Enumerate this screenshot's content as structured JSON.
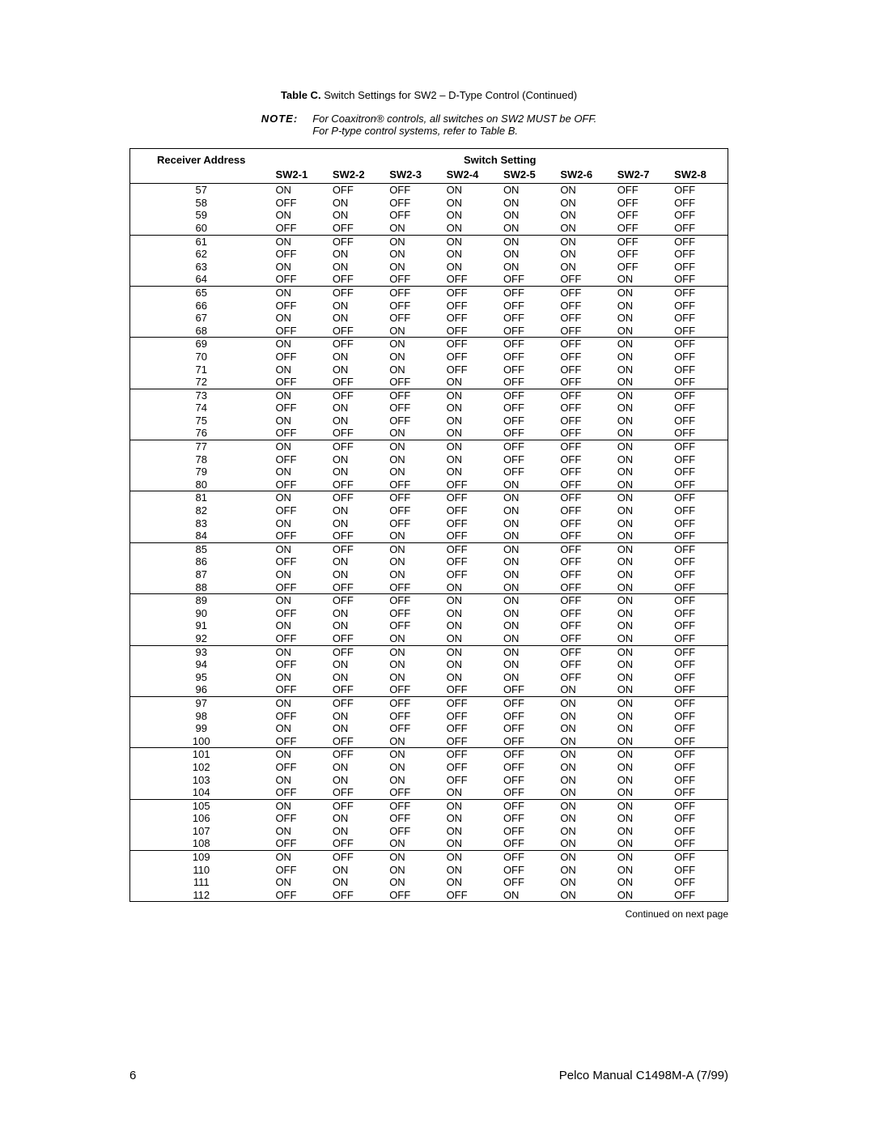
{
  "caption_label": "Table C.",
  "caption_text": "Switch Settings for SW2 – D-Type Control (Continued)",
  "note_label": "NOTE:",
  "note_text": "For Coaxitron® controls, all switches on SW2 MUST be OFF.\nFor P-type control systems, refer to Table B.",
  "header_addr": "Receiver Address",
  "header_switch": "Switch Setting",
  "cols": [
    "SW2-1",
    "SW2-2",
    "SW2-3",
    "SW2-4",
    "SW2-5",
    "SW2-6",
    "SW2-7",
    "SW2-8"
  ],
  "continued": "Continued on next page",
  "page_num": "6",
  "manual_ref": "Pelco Manual C1498M-A (7/99)",
  "groups": [
    [
      {
        "addr": "57",
        "v": [
          "ON",
          "OFF",
          "OFF",
          "ON",
          "ON",
          "ON",
          "OFF",
          "OFF"
        ]
      },
      {
        "addr": "58",
        "v": [
          "OFF",
          "ON",
          "OFF",
          "ON",
          "ON",
          "ON",
          "OFF",
          "OFF"
        ]
      },
      {
        "addr": "59",
        "v": [
          "ON",
          "ON",
          "OFF",
          "ON",
          "ON",
          "ON",
          "OFF",
          "OFF"
        ]
      },
      {
        "addr": "60",
        "v": [
          "OFF",
          "OFF",
          "ON",
          "ON",
          "ON",
          "ON",
          "OFF",
          "OFF"
        ]
      }
    ],
    [
      {
        "addr": "61",
        "v": [
          "ON",
          "OFF",
          "ON",
          "ON",
          "ON",
          "ON",
          "OFF",
          "OFF"
        ]
      },
      {
        "addr": "62",
        "v": [
          "OFF",
          "ON",
          "ON",
          "ON",
          "ON",
          "ON",
          "OFF",
          "OFF"
        ]
      },
      {
        "addr": "63",
        "v": [
          "ON",
          "ON",
          "ON",
          "ON",
          "ON",
          "ON",
          "OFF",
          "OFF"
        ]
      },
      {
        "addr": "64",
        "v": [
          "OFF",
          "OFF",
          "OFF",
          "OFF",
          "OFF",
          "OFF",
          "ON",
          "OFF"
        ]
      }
    ],
    [
      {
        "addr": "65",
        "v": [
          "ON",
          "OFF",
          "OFF",
          "OFF",
          "OFF",
          "OFF",
          "ON",
          "OFF"
        ]
      },
      {
        "addr": "66",
        "v": [
          "OFF",
          "ON",
          "OFF",
          "OFF",
          "OFF",
          "OFF",
          "ON",
          "OFF"
        ]
      },
      {
        "addr": "67",
        "v": [
          "ON",
          "ON",
          "OFF",
          "OFF",
          "OFF",
          "OFF",
          "ON",
          "OFF"
        ]
      },
      {
        "addr": "68",
        "v": [
          "OFF",
          "OFF",
          "ON",
          "OFF",
          "OFF",
          "OFF",
          "ON",
          "OFF"
        ]
      }
    ],
    [
      {
        "addr": "69",
        "v": [
          "ON",
          "OFF",
          "ON",
          "OFF",
          "OFF",
          "OFF",
          "ON",
          "OFF"
        ]
      },
      {
        "addr": "70",
        "v": [
          "OFF",
          "ON",
          "ON",
          "OFF",
          "OFF",
          "OFF",
          "ON",
          "OFF"
        ]
      },
      {
        "addr": "71",
        "v": [
          "ON",
          "ON",
          "ON",
          "OFF",
          "OFF",
          "OFF",
          "ON",
          "OFF"
        ]
      },
      {
        "addr": "72",
        "v": [
          "OFF",
          "OFF",
          "OFF",
          "ON",
          "OFF",
          "OFF",
          "ON",
          "OFF"
        ]
      }
    ],
    [
      {
        "addr": "73",
        "v": [
          "ON",
          "OFF",
          "OFF",
          "ON",
          "OFF",
          "OFF",
          "ON",
          "OFF"
        ]
      },
      {
        "addr": "74",
        "v": [
          "OFF",
          "ON",
          "OFF",
          "ON",
          "OFF",
          "OFF",
          "ON",
          "OFF"
        ]
      },
      {
        "addr": "75",
        "v": [
          "ON",
          "ON",
          "OFF",
          "ON",
          "OFF",
          "OFF",
          "ON",
          "OFF"
        ]
      },
      {
        "addr": "76",
        "v": [
          "OFF",
          "OFF",
          "ON",
          "ON",
          "OFF",
          "OFF",
          "ON",
          "OFF"
        ]
      }
    ],
    [
      {
        "addr": "77",
        "v": [
          "ON",
          "OFF",
          "ON",
          "ON",
          "OFF",
          "OFF",
          "ON",
          "OFF"
        ]
      },
      {
        "addr": "78",
        "v": [
          "OFF",
          "ON",
          "ON",
          "ON",
          "OFF",
          "OFF",
          "ON",
          "OFF"
        ]
      },
      {
        "addr": "79",
        "v": [
          "ON",
          "ON",
          "ON",
          "ON",
          "OFF",
          "OFF",
          "ON",
          "OFF"
        ]
      },
      {
        "addr": "80",
        "v": [
          "OFF",
          "OFF",
          "OFF",
          "OFF",
          "ON",
          "OFF",
          "ON",
          "OFF"
        ]
      }
    ],
    [
      {
        "addr": "81",
        "v": [
          "ON",
          "OFF",
          "OFF",
          "OFF",
          "ON",
          "OFF",
          "ON",
          "OFF"
        ]
      },
      {
        "addr": "82",
        "v": [
          "OFF",
          "ON",
          "OFF",
          "OFF",
          "ON",
          "OFF",
          "ON",
          "OFF"
        ]
      },
      {
        "addr": "83",
        "v": [
          "ON",
          "ON",
          "OFF",
          "OFF",
          "ON",
          "OFF",
          "ON",
          "OFF"
        ]
      },
      {
        "addr": "84",
        "v": [
          "OFF",
          "OFF",
          "ON",
          "OFF",
          "ON",
          "OFF",
          "ON",
          "OFF"
        ]
      }
    ],
    [
      {
        "addr": "85",
        "v": [
          "ON",
          "OFF",
          "ON",
          "OFF",
          "ON",
          "OFF",
          "ON",
          "OFF"
        ]
      },
      {
        "addr": "86",
        "v": [
          "OFF",
          "ON",
          "ON",
          "OFF",
          "ON",
          "OFF",
          "ON",
          "OFF"
        ]
      },
      {
        "addr": "87",
        "v": [
          "ON",
          "ON",
          "ON",
          "OFF",
          "ON",
          "OFF",
          "ON",
          "OFF"
        ]
      },
      {
        "addr": "88",
        "v": [
          "OFF",
          "OFF",
          "OFF",
          "ON",
          "ON",
          "OFF",
          "ON",
          "OFF"
        ]
      }
    ],
    [
      {
        "addr": "89",
        "v": [
          "ON",
          "OFF",
          "OFF",
          "ON",
          "ON",
          "OFF",
          "ON",
          "OFF"
        ]
      },
      {
        "addr": "90",
        "v": [
          "OFF",
          "ON",
          "OFF",
          "ON",
          "ON",
          "OFF",
          "ON",
          "OFF"
        ]
      },
      {
        "addr": "91",
        "v": [
          "ON",
          "ON",
          "OFF",
          "ON",
          "ON",
          "OFF",
          "ON",
          "OFF"
        ]
      },
      {
        "addr": "92",
        "v": [
          "OFF",
          "OFF",
          "ON",
          "ON",
          "ON",
          "OFF",
          "ON",
          "OFF"
        ]
      }
    ],
    [
      {
        "addr": "93",
        "v": [
          "ON",
          "OFF",
          "ON",
          "ON",
          "ON",
          "OFF",
          "ON",
          "OFF"
        ]
      },
      {
        "addr": "94",
        "v": [
          "OFF",
          "ON",
          "ON",
          "ON",
          "ON",
          "OFF",
          "ON",
          "OFF"
        ]
      },
      {
        "addr": "95",
        "v": [
          "ON",
          "ON",
          "ON",
          "ON",
          "ON",
          "OFF",
          "ON",
          "OFF"
        ]
      },
      {
        "addr": "96",
        "v": [
          "OFF",
          "OFF",
          "OFF",
          "OFF",
          "OFF",
          "ON",
          "ON",
          "OFF"
        ]
      }
    ],
    [
      {
        "addr": "97",
        "v": [
          "ON",
          "OFF",
          "OFF",
          "OFF",
          "OFF",
          "ON",
          "ON",
          "OFF"
        ]
      },
      {
        "addr": "98",
        "v": [
          "OFF",
          "ON",
          "OFF",
          "OFF",
          "OFF",
          "ON",
          "ON",
          "OFF"
        ]
      },
      {
        "addr": "99",
        "v": [
          "ON",
          "ON",
          "OFF",
          "OFF",
          "OFF",
          "ON",
          "ON",
          "OFF"
        ]
      },
      {
        "addr": "100",
        "v": [
          "OFF",
          "OFF",
          "ON",
          "OFF",
          "OFF",
          "ON",
          "ON",
          "OFF"
        ]
      }
    ],
    [
      {
        "addr": "101",
        "v": [
          "ON",
          "OFF",
          "ON",
          "OFF",
          "OFF",
          "ON",
          "ON",
          "OFF"
        ]
      },
      {
        "addr": "102",
        "v": [
          "OFF",
          "ON",
          "ON",
          "OFF",
          "OFF",
          "ON",
          "ON",
          "OFF"
        ]
      },
      {
        "addr": "103",
        "v": [
          "ON",
          "ON",
          "ON",
          "OFF",
          "OFF",
          "ON",
          "ON",
          "OFF"
        ]
      },
      {
        "addr": "104",
        "v": [
          "OFF",
          "OFF",
          "OFF",
          "ON",
          "OFF",
          "ON",
          "ON",
          "OFF"
        ]
      }
    ],
    [
      {
        "addr": "105",
        "v": [
          "ON",
          "OFF",
          "OFF",
          "ON",
          "OFF",
          "ON",
          "ON",
          "OFF"
        ]
      },
      {
        "addr": "106",
        "v": [
          "OFF",
          "ON",
          "OFF",
          "ON",
          "OFF",
          "ON",
          "ON",
          "OFF"
        ]
      },
      {
        "addr": "107",
        "v": [
          "ON",
          "ON",
          "OFF",
          "ON",
          "OFF",
          "ON",
          "ON",
          "OFF"
        ]
      },
      {
        "addr": "108",
        "v": [
          "OFF",
          "OFF",
          "ON",
          "ON",
          "OFF",
          "ON",
          "ON",
          "OFF"
        ]
      }
    ],
    [
      {
        "addr": "109",
        "v": [
          "ON",
          "OFF",
          "ON",
          "ON",
          "OFF",
          "ON",
          "ON",
          "OFF"
        ]
      },
      {
        "addr": "110",
        "v": [
          "OFF",
          "ON",
          "ON",
          "ON",
          "OFF",
          "ON",
          "ON",
          "OFF"
        ]
      },
      {
        "addr": "111",
        "v": [
          "ON",
          "ON",
          "ON",
          "ON",
          "OFF",
          "ON",
          "ON",
          "OFF"
        ]
      },
      {
        "addr": "112",
        "v": [
          "OFF",
          "OFF",
          "OFF",
          "OFF",
          "ON",
          "ON",
          "ON",
          "OFF"
        ]
      }
    ]
  ]
}
